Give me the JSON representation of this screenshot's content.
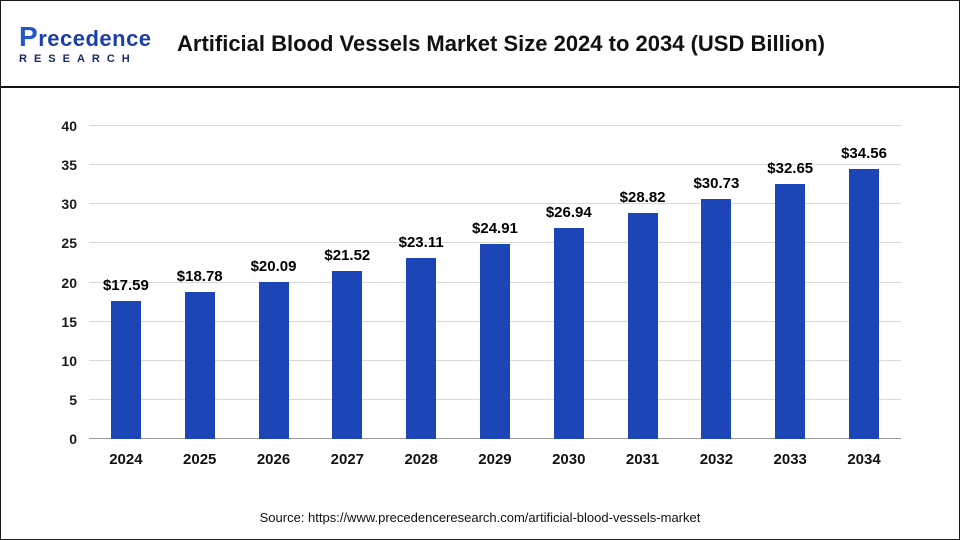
{
  "header": {
    "brand": "Precedence",
    "brand_sub": "RESEARCH",
    "title": "Artificial Blood Vessels Market Size 2024 to 2034 (USD Billion)"
  },
  "chart_data": {
    "type": "bar",
    "categories": [
      "2024",
      "2025",
      "2026",
      "2027",
      "2028",
      "2029",
      "2030",
      "2031",
      "2032",
      "2033",
      "2034"
    ],
    "values": [
      17.59,
      18.78,
      20.09,
      21.52,
      23.11,
      24.91,
      26.94,
      28.82,
      30.73,
      32.65,
      34.56
    ],
    "value_labels": [
      "$17.59",
      "$18.78",
      "$20.09",
      "$21.52",
      "$23.11",
      "$24.91",
      "$26.94",
      "$28.82",
      "$30.73",
      "$32.65",
      "$34.56"
    ],
    "title": "Artificial Blood Vessels Market Size 2024 to 2034 (USD Billion)",
    "xlabel": "",
    "ylabel": "",
    "ylim": [
      0,
      40
    ],
    "ytick_step": 5,
    "yticks": [
      0,
      5,
      10,
      15,
      20,
      25,
      30,
      35,
      40
    ],
    "grid": true,
    "legend": "none",
    "bar_color": "#1C45B8"
  },
  "footer": {
    "source": "Source: https://www.precedenceresearch.com/artificial-blood-vessels-market"
  }
}
